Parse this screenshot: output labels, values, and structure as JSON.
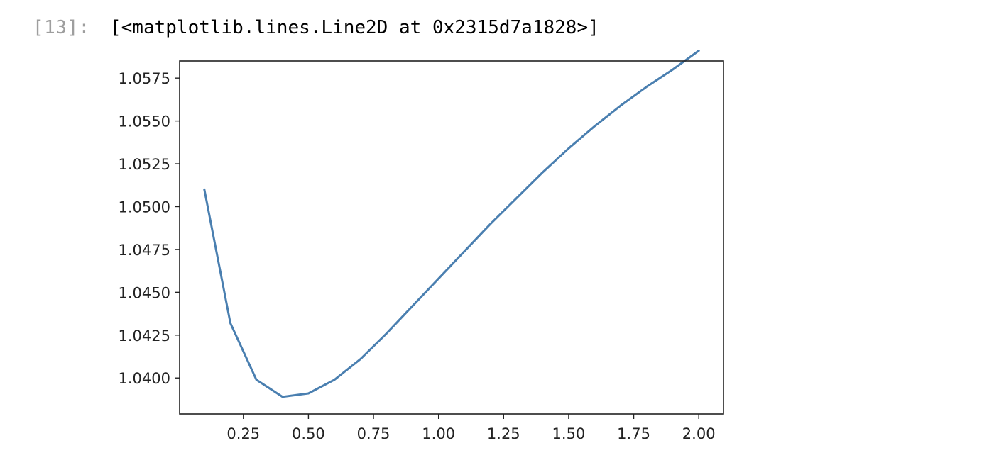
{
  "cell": {
    "prompt": "[13]:",
    "output_repr": "[<matplotlib.lines.Line2D at 0x2315d7a1828>]"
  },
  "colors": {
    "line": "#4a7fb0",
    "axes": "#222222",
    "prompt": "#9e9e9e"
  },
  "chart_data": {
    "type": "line",
    "x": [
      0.1,
      0.2,
      0.3,
      0.4,
      0.5,
      0.6,
      0.7,
      0.8,
      0.9,
      1.0,
      1.1,
      1.2,
      1.3,
      1.4,
      1.5,
      1.6,
      1.7,
      1.8,
      1.9,
      2.0
    ],
    "y": [
      1.051,
      1.0432,
      1.0399,
      1.0389,
      1.0391,
      1.0399,
      1.0411,
      1.0426,
      1.0442,
      1.0458,
      1.0474,
      1.049,
      1.0505,
      1.052,
      1.0534,
      1.0547,
      1.0559,
      1.057,
      1.058,
      1.0591
    ],
    "xlim": [
      0.005,
      2.095
    ],
    "ylim": [
      1.0379,
      1.0585
    ],
    "xticks": [
      0.25,
      0.5,
      0.75,
      1.0,
      1.25,
      1.5,
      1.75,
      2.0
    ],
    "xtick_labels": [
      "0.25",
      "0.50",
      "0.75",
      "1.00",
      "1.25",
      "1.50",
      "1.75",
      "2.00"
    ],
    "yticks": [
      1.04,
      1.0425,
      1.045,
      1.0475,
      1.05,
      1.0525,
      1.055,
      1.0575
    ],
    "ytick_labels": [
      "1.0400",
      "1.0425",
      "1.0450",
      "1.0475",
      "1.0500",
      "1.0525",
      "1.0550",
      "1.0575"
    ],
    "grid": false,
    "legend": false
  }
}
